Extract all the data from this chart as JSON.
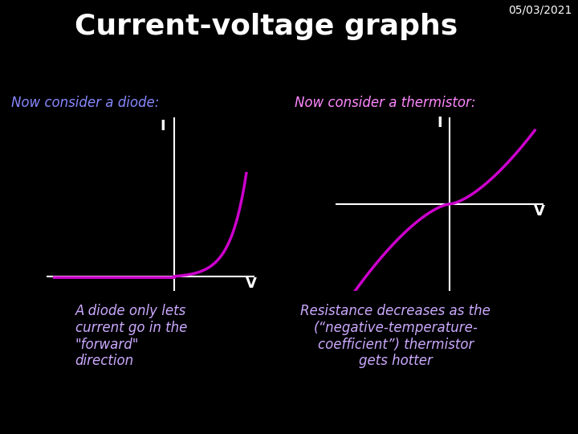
{
  "title": "Current-voltage graphs",
  "date": "05/03/2021",
  "background_color": "#000000",
  "title_color": "#ffffff",
  "date_color": "#ffffff",
  "diode_label": "Now consider a diode:",
  "thermistor_label": "Now consider a thermistor:",
  "label_color_diode": "#8888ff",
  "label_color_thermistor": "#ff88ff",
  "curve_color": "#cc00cc",
  "axis_color": "#ffffff",
  "diode_caption": "A diode only lets\ncurrent go in the\n\"forward\"\ndirection",
  "thermistor_caption": "Resistance decreases as the\n(“negative-temperature-\ncoefficient”) thermistor\ngets hotter",
  "caption_color": "#ccaaff",
  "axis_label_color": "#ffffff",
  "curve_linewidth": 2.5
}
